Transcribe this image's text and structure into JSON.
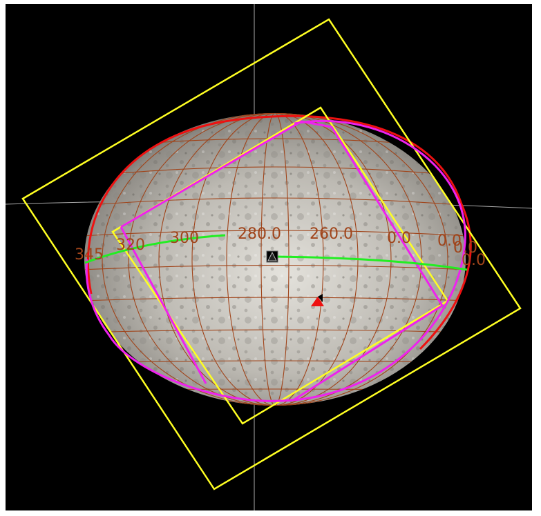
{
  "colors": {
    "background": "#000000",
    "frame_yellow": "#ffff22",
    "frame_magenta": "#ee22ee",
    "limb_red": "#ee1111",
    "track_green": "#22ee22",
    "grid_brown": "#a0441a",
    "crosshair": "#aaaaaa",
    "marker_black": "#000000",
    "marker_red": "#ee1111"
  },
  "longitude_labels": {
    "l345": "345",
    "l320": "320",
    "l300": "300",
    "l280": "280.0",
    "l260": "260.0",
    "l0a": "0.0",
    "l0b": "0.0",
    "l0c": "0.0",
    "l0d": "0.0"
  },
  "markers": {
    "center": "black-triangle-icon",
    "subpoint": "red-triangle-icon"
  }
}
